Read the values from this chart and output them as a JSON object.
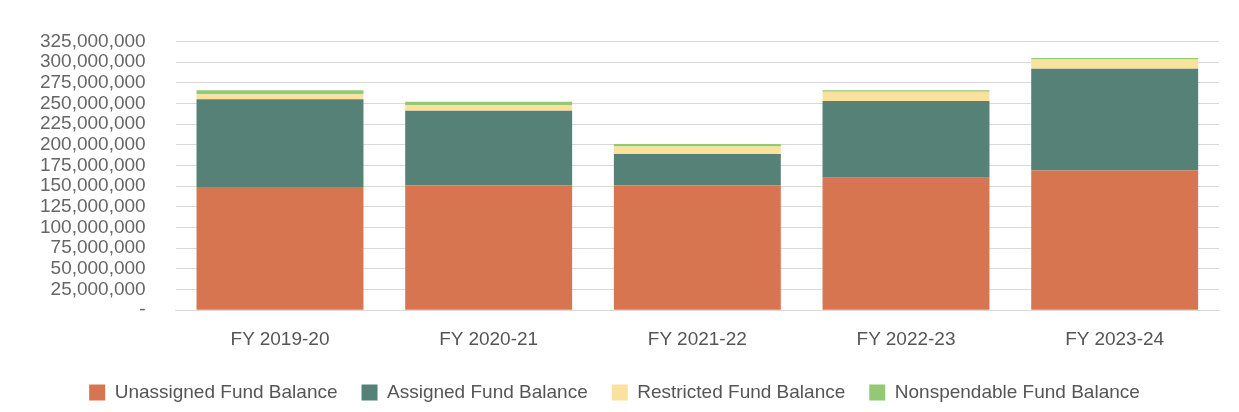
{
  "chart_data": {
    "type": "bar",
    "stacked": true,
    "categories": [
      "FY 2019-20",
      "FY 2020-21",
      "FY 2021-22",
      "FY 2022-23",
      "FY 2023-24"
    ],
    "series": [
      {
        "name": "Unassigned Fund Balance",
        "color": "#d87551",
        "values": [
          149000000,
          151000000,
          151000000,
          160000000,
          169000000
        ]
      },
      {
        "name": "Assigned Fund Balance",
        "color": "#568176",
        "values": [
          106000000,
          90000000,
          38000000,
          93000000,
          123000000
        ]
      },
      {
        "name": "Restricted Fund Balance",
        "color": "#fbe19e",
        "values": [
          6000000,
          7000000,
          9000000,
          11000000,
          11000000
        ]
      },
      {
        "name": "Nonspendable Fund Balance",
        "color": "#93c874",
        "values": [
          5000000,
          4000000,
          3000000,
          2000000,
          2000000
        ]
      }
    ],
    "ylim": [
      0,
      325000000
    ],
    "yticks": [
      {
        "value": 0,
        "label": "-"
      },
      {
        "value": 25000000,
        "label": "25,000,000"
      },
      {
        "value": 50000000,
        "label": "50,000,000"
      },
      {
        "value": 75000000,
        "label": "75,000,000"
      },
      {
        "value": 100000000,
        "label": "100,000,000"
      },
      {
        "value": 125000000,
        "label": "125,000,000"
      },
      {
        "value": 150000000,
        "label": "150,000,000"
      },
      {
        "value": 175000000,
        "label": "175,000,000"
      },
      {
        "value": 200000000,
        "label": "200,000,000"
      },
      {
        "value": 225000000,
        "label": "225,000,000"
      },
      {
        "value": 250000000,
        "label": "250,000,000"
      },
      {
        "value": 275000000,
        "label": "275,000,000"
      },
      {
        "value": 300000000,
        "label": "300,000,000"
      },
      {
        "value": 325000000,
        "label": "325,000,000"
      }
    ],
    "grid": "y",
    "legend": "bottom"
  }
}
